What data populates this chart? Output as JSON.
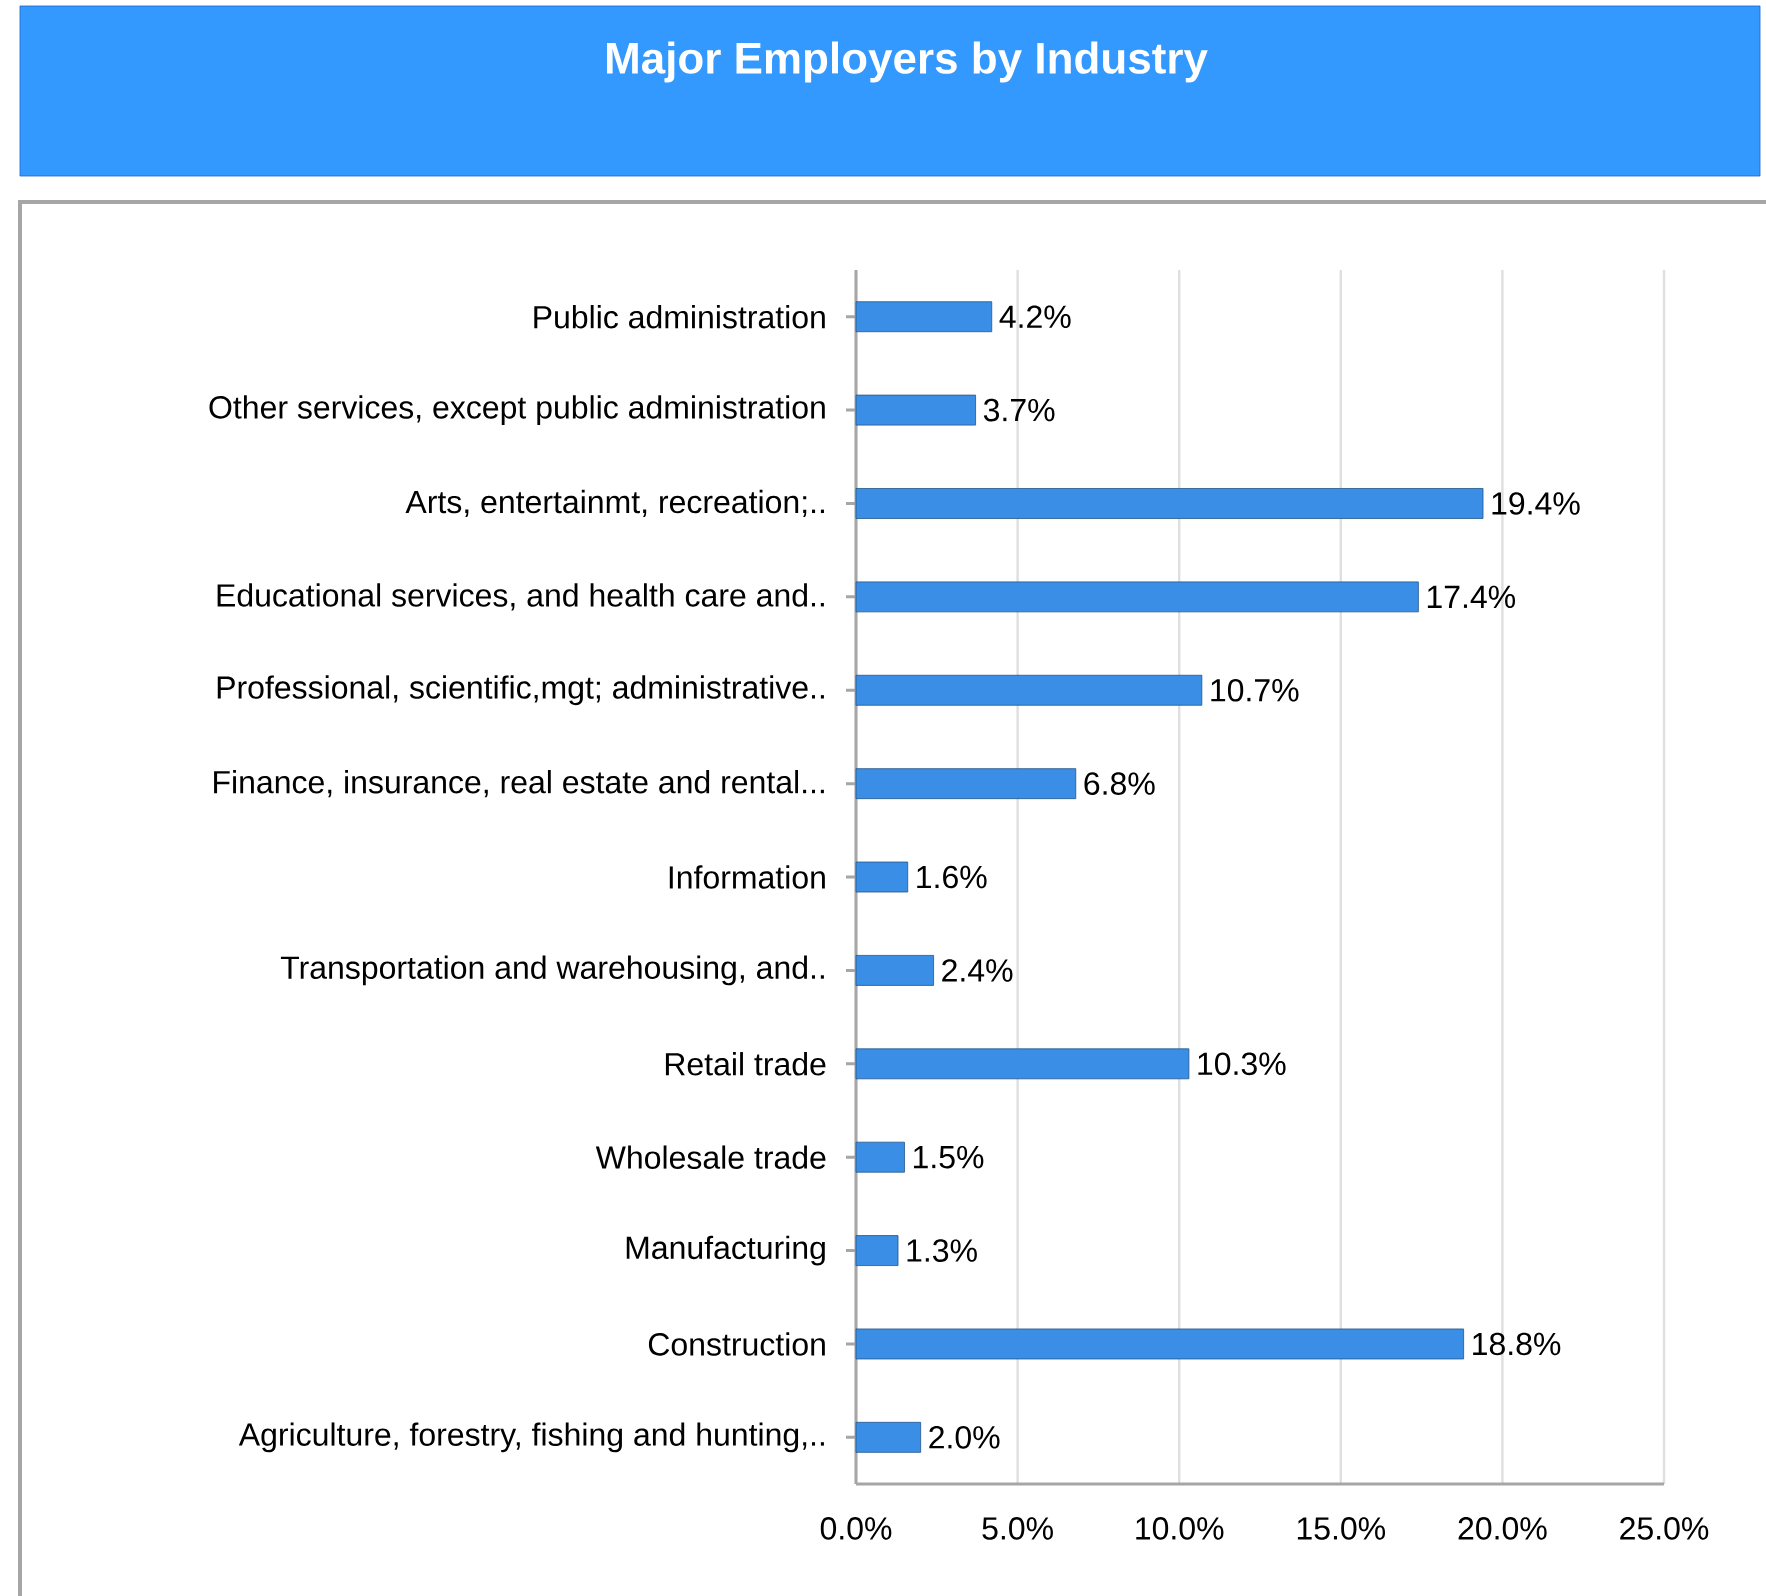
{
  "chart_data": {
    "type": "bar",
    "orientation": "horizontal",
    "title": "Major Employers by Industry",
    "categories": [
      "Public administration",
      "Other services, except public administration",
      "Arts, entertainmt, recreation;..",
      "Educational services, and health care and..",
      "Professional, scientific,mgt; administrative..",
      "Finance, insurance, real estate and rental...",
      "Information",
      "Transportation and warehousing, and..",
      "Retail trade",
      "Wholesale trade",
      "Manufacturing",
      "Construction",
      "Agriculture, forestry, fishing and hunting,.."
    ],
    "values": [
      4.2,
      3.7,
      19.4,
      17.4,
      10.7,
      6.8,
      1.6,
      2.4,
      10.3,
      1.5,
      1.3,
      18.8,
      2.0
    ],
    "value_labels": [
      "4.2%",
      "3.7%",
      "19.4%",
      "17.4%",
      "10.7%",
      "6.8%",
      "1.6%",
      "2.4%",
      "10.3%",
      "1.5%",
      "1.3%",
      "18.8%",
      "2.0%"
    ],
    "color": "#3a8ee6",
    "xlim": [
      0,
      25
    ],
    "xticks": [
      {
        "value": 0,
        "label": "0.0%"
      },
      {
        "value": 5,
        "label": "5.0%"
      },
      {
        "value": 10,
        "label": "10.0%"
      },
      {
        "value": 15,
        "label": "15.0%"
      },
      {
        "value": 20,
        "label": "20.0%"
      },
      {
        "value": 25,
        "label": "25.0%"
      }
    ],
    "grid": "x"
  }
}
